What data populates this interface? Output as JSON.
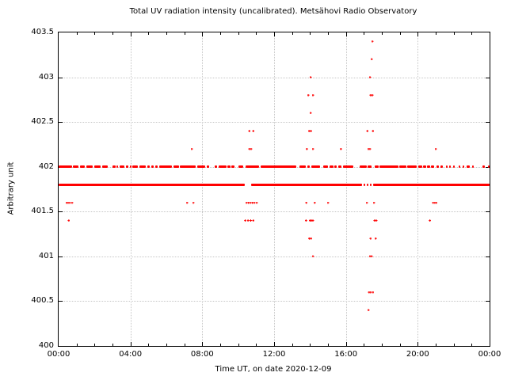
{
  "chart_data": {
    "type": "scatter",
    "title": "Total UV radiation intensity (uncalibrated). Metsähovi Radio Observatory",
    "xlabel": "Time UT, on date 2020-12-09",
    "ylabel": "Arbitrary unit",
    "xlim": [
      0,
      24
    ],
    "ylim": [
      400,
      403.5
    ],
    "grid": true,
    "point_color": "#ff0000",
    "axis_color": "#000000",
    "grid_color": "#c6c6c6",
    "x_ticks": [
      {
        "h": 0,
        "label": "00:00"
      },
      {
        "h": 4,
        "label": "04:00"
      },
      {
        "h": 8,
        "label": "08:00"
      },
      {
        "h": 12,
        "label": "12:00"
      },
      {
        "h": 16,
        "label": "16:00"
      },
      {
        "h": 20,
        "label": "20:00"
      },
      {
        "h": 24,
        "label": "00:00"
      }
    ],
    "x_minor_tick_every_hours": 1,
    "y_ticks": [
      {
        "v": 400,
        "label": "400"
      },
      {
        "v": 400.5,
        "label": "400.5"
      },
      {
        "v": 401,
        "label": "401"
      },
      {
        "v": 401.5,
        "label": "401.5"
      },
      {
        "v": 402,
        "label": "402"
      },
      {
        "v": 402.5,
        "label": "402.5"
      },
      {
        "v": 403,
        "label": "403"
      },
      {
        "v": 403.5,
        "label": "403.5"
      }
    ],
    "bands": [
      {
        "value": 402.0,
        "segments": [
          [
            0.0,
            0.74
          ],
          [
            0.81,
            1.1
          ],
          [
            1.18,
            1.47
          ],
          [
            1.54,
            1.91
          ],
          [
            1.99,
            2.35
          ],
          [
            2.43,
            2.72
          ],
          [
            3.01,
            3.16
          ],
          [
            3.24,
            3.31
          ],
          [
            3.38,
            3.68
          ],
          [
            3.75,
            3.9
          ],
          [
            3.97,
            4.05
          ],
          [
            4.12,
            4.41
          ],
          [
            4.49,
            4.85
          ],
          [
            4.93,
            5.07
          ],
          [
            5.15,
            5.29
          ],
          [
            5.37,
            5.51
          ],
          [
            5.59,
            6.32
          ],
          [
            6.4,
            6.69
          ],
          [
            6.76,
            7.65
          ],
          [
            7.72,
            8.16
          ],
          [
            8.24,
            8.38
          ],
          [
            8.68,
            8.82
          ],
          [
            8.9,
            9.34
          ],
          [
            9.41,
            9.56
          ],
          [
            9.63,
            9.78
          ],
          [
            10.0,
            10.28
          ],
          [
            10.4,
            11.15
          ],
          [
            11.25,
            13.25
          ],
          [
            13.4,
            13.76
          ],
          [
            13.84,
            13.99
          ],
          [
            14.06,
            14.57
          ],
          [
            14.72,
            15.01
          ],
          [
            15.09,
            15.3
          ],
          [
            15.36,
            15.5
          ],
          [
            15.56,
            15.75
          ],
          [
            15.82,
            16.41
          ],
          [
            16.78,
            17.15
          ],
          [
            17.22,
            17.44
          ],
          [
            17.59,
            17.81
          ],
          [
            17.88,
            18.91
          ],
          [
            18.99,
            19.35
          ],
          [
            19.43,
            19.94
          ],
          [
            20.01,
            20.24
          ],
          [
            20.31,
            20.46
          ],
          [
            20.53,
            20.68
          ],
          [
            20.75,
            20.9
          ],
          [
            21.04,
            21.19
          ],
          [
            21.26,
            21.4
          ],
          [
            21.56,
            21.63
          ],
          [
            21.75,
            21.81
          ],
          [
            21.97,
            22.03
          ],
          [
            22.29,
            22.37
          ],
          [
            22.51,
            22.59
          ],
          [
            22.74,
            22.88
          ],
          [
            23.03,
            23.1
          ],
          [
            23.6,
            23.76
          ],
          [
            23.9,
            24.0
          ]
        ]
      },
      {
        "value": 401.8,
        "segments": [
          [
            0.0,
            10.37
          ],
          [
            10.74,
            16.92
          ],
          [
            16.98,
            17.09
          ],
          [
            17.15,
            17.27
          ],
          [
            17.33,
            17.45
          ],
          [
            17.51,
            24.0
          ]
        ]
      }
    ],
    "outlier_points": [
      {
        "value": 403.4,
        "hours": [
          17.47
        ]
      },
      {
        "value": 403.2,
        "hours": [
          17.43
        ]
      },
      {
        "value": 403.0,
        "hours": [
          14.03,
          17.34
        ]
      },
      {
        "value": 402.8,
        "hours": [
          13.9,
          14.16,
          17.38,
          17.47
        ]
      },
      {
        "value": 402.6,
        "hours": [
          14.03
        ]
      },
      {
        "value": 402.4,
        "hours": [
          10.63,
          10.85,
          13.95,
          14.05,
          17.2,
          17.51
        ]
      },
      {
        "value": 402.2,
        "hours": [
          7.41,
          10.63,
          10.72,
          13.82,
          14.16,
          15.72,
          17.25,
          17.34,
          21.0
        ]
      },
      {
        "value": 401.6,
        "hours": [
          0.44,
          0.53,
          0.62,
          0.75,
          7.15,
          7.5,
          10.46,
          10.57,
          10.68,
          10.79,
          10.9,
          11.03,
          13.8,
          14.26,
          15.0,
          17.16,
          17.56,
          20.86,
          20.95,
          21.04
        ]
      },
      {
        "value": 401.4,
        "hours": [
          0.57,
          10.4,
          10.55,
          10.7,
          10.85,
          13.78,
          14.0,
          14.08,
          14.16,
          17.6,
          17.69,
          20.68
        ]
      },
      {
        "value": 401.2,
        "hours": [
          13.96,
          14.06,
          17.38,
          17.65
        ]
      },
      {
        "value": 401.0,
        "hours": [
          14.16,
          17.34,
          17.43
        ]
      },
      {
        "value": 400.6,
        "hours": [
          17.29,
          17.38,
          17.51
        ]
      },
      {
        "value": 400.4,
        "hours": [
          17.25
        ]
      }
    ]
  }
}
